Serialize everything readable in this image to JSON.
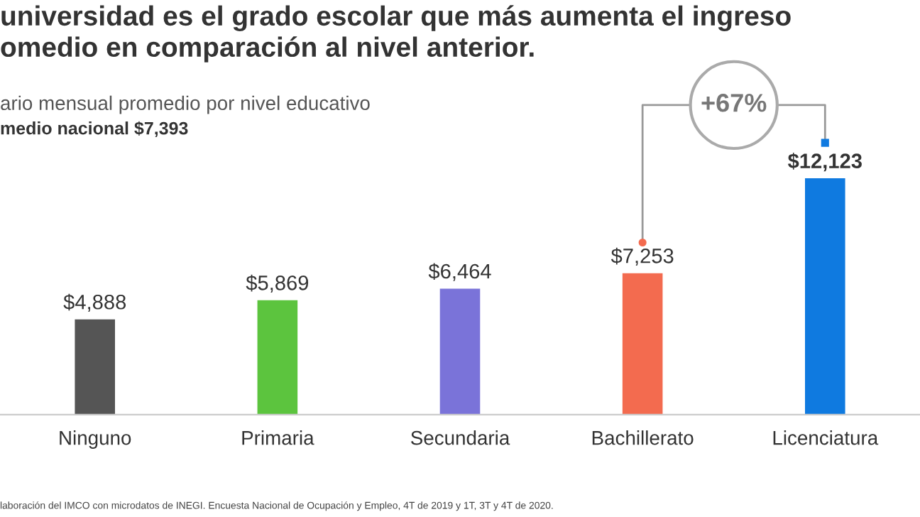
{
  "chart_data": {
    "type": "bar",
    "title": "universidad es el grado escolar que más aumenta el ingreso\nomedio en comparación al nivel anterior.",
    "subtitle": "ario mensual promedio por nivel educativo",
    "categories": [
      "Ninguno",
      "Primaria",
      "Secundaria",
      "Bachillerato",
      "Licenciatura"
    ],
    "values": [
      4888,
      5869,
      6464,
      7253,
      12123
    ],
    "colors": [
      "#555555",
      "#5cc43e",
      "#7a73d9",
      "#f36b4f",
      "#0f7ae0"
    ],
    "value_labels": [
      "$4,888",
      "$5,869",
      "$6,464",
      "$7,253",
      "$12,123"
    ],
    "annotations": [
      "medio nacional $7,393",
      "+67%",
      "laboración del IMCO con microdatos de INEGI. Encuesta Nacional de Ocupación y Empleo, 4T de 2019 y 1T, 3T y 4T de 2020."
    ],
    "grid": false,
    "legend": false
  }
}
